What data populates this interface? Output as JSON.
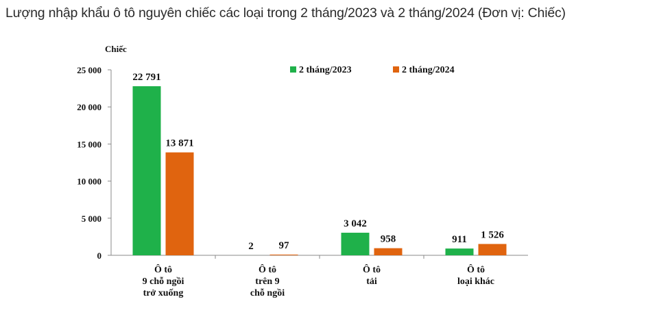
{
  "title": "Lượng nhập khẩu ô tô nguyên chiếc các loại trong 2 tháng/2023 và 2 tháng/2024 (Đơn vị: Chiếc)",
  "chart_data": {
    "type": "bar",
    "title": "Lượng nhập khẩu ô tô nguyên chiếc các loại trong 2 tháng/2023 và 2 tháng/2024 (Đơn vị: Chiếc)",
    "ylabel": "Chiếc",
    "ylim": [
      0,
      25000
    ],
    "yticks": [
      0,
      5000,
      10000,
      15000,
      20000,
      25000
    ],
    "ytick_labels": [
      "0",
      "5 000",
      "10 000",
      "15 000",
      "20 000",
      "25 000"
    ],
    "categories": [
      [
        "Ô tô",
        "9 chỗ ngồi",
        "trở xuống"
      ],
      [
        "Ô tô",
        "trên 9",
        "chỗ ngồi"
      ],
      [
        "Ô tô",
        "tải"
      ],
      [
        "Ô tô",
        "loại khác"
      ]
    ],
    "series": [
      {
        "name": "2 tháng/2023",
        "color": "#1fb14a",
        "values": [
          22791,
          2,
          3042,
          911
        ],
        "labels": [
          "22 791",
          "2",
          "3 042",
          "911"
        ]
      },
      {
        "name": "2 tháng/2024",
        "color": "#e0640f",
        "values": [
          13871,
          97,
          958,
          1526
        ],
        "labels": [
          "13 871",
          "97",
          "958",
          "1 526"
        ]
      }
    ],
    "legend": "top-right",
    "grid": false
  }
}
